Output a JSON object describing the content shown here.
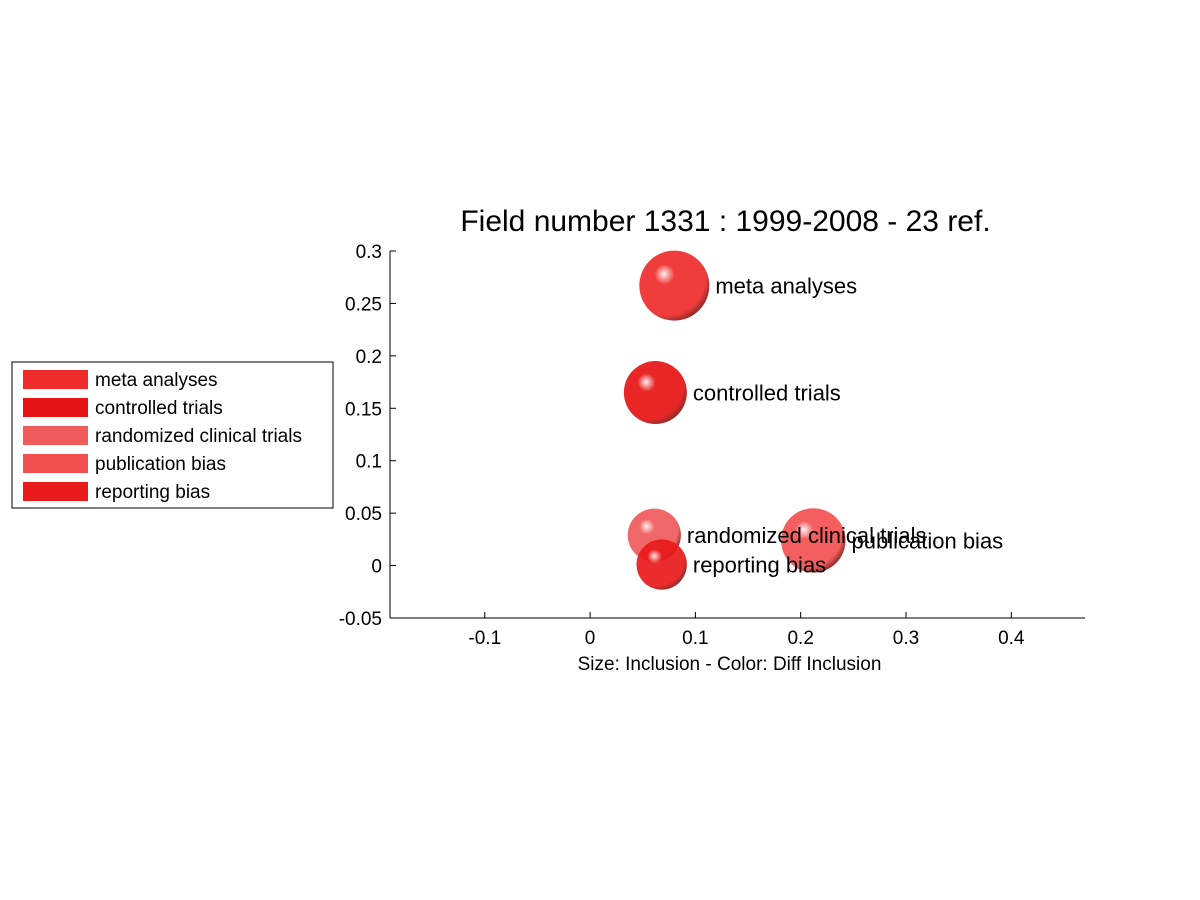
{
  "chart_data": {
    "type": "scatter",
    "title": "Field number 1331 : 1999-2008  - 23 ref.",
    "xlabel": "Size: Inclusion - Color: Diff Inclusion",
    "ylabel": "",
    "xlim": [
      -0.19,
      0.47
    ],
    "ylim": [
      -0.05,
      0.3
    ],
    "xticks": [
      -0.1,
      0,
      0.1,
      0.2,
      0.3,
      0.4
    ],
    "xtick_labels": [
      "-0.1",
      "0",
      "0.1",
      "0.2",
      "0.3",
      "0.4"
    ],
    "yticks": [
      -0.05,
      0,
      0.05,
      0.1,
      0.15,
      0.2,
      0.25,
      0.3
    ],
    "ytick_labels": [
      "-0.05",
      "0",
      "0.05",
      "0.1",
      "0.15",
      "0.2",
      "0.25",
      "0.3"
    ],
    "grid": false,
    "legend_position": "left-outside",
    "series": [
      {
        "name": "meta analyses",
        "x": 0.08,
        "y": 0.267,
        "size": 1.0,
        "color": "#ee2c2c"
      },
      {
        "name": "controlled trials",
        "x": 0.062,
        "y": 0.165,
        "size": 0.9,
        "color": "#e61414"
      },
      {
        "name": "randomized clinical trials",
        "x": 0.061,
        "y": 0.029,
        "size": 0.76,
        "color": "#f05a5a"
      },
      {
        "name": "publication bias",
        "x": 0.212,
        "y": 0.024,
        "size": 0.92,
        "color": "#f25050"
      },
      {
        "name": "reporting bias",
        "x": 0.068,
        "y": 0.001,
        "size": 0.72,
        "color": "#e81a1a"
      }
    ]
  }
}
